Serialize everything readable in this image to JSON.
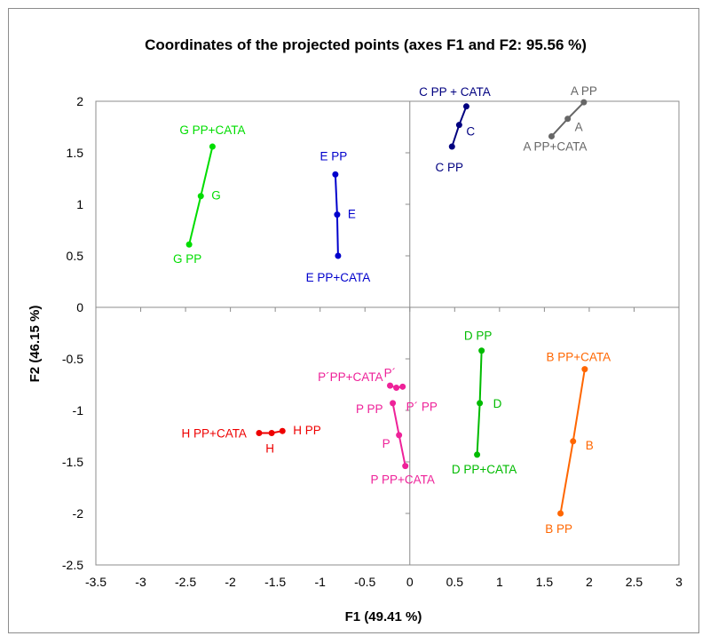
{
  "chart_data": {
    "type": "scatter",
    "title": "Coordinates of the projected points (axes F1 and F2: 95.56 %)",
    "xlabel": "F1 (49.41 %)",
    "ylabel": "F2 (46.15 %)",
    "xlim": [
      -3.5,
      3
    ],
    "ylim": [
      -2.5,
      2
    ],
    "xticks": [
      -3.5,
      -3,
      -2.5,
      -2,
      -1.5,
      -1,
      -0.5,
      0,
      0.5,
      1,
      1.5,
      2,
      2.5,
      3
    ],
    "yticks": [
      -2.5,
      -2,
      -1.5,
      -1,
      -0.5,
      0,
      0.5,
      1,
      1.5,
      2
    ],
    "xtick_labels": [
      "-3.5",
      "-3",
      "-2.5",
      "-2",
      "-1.5",
      "-1",
      "-0.5",
      "0",
      "0.5",
      "1",
      "1.5",
      "2",
      "2.5",
      "3"
    ],
    "ytick_labels": [
      "-2.5",
      "-2",
      "-1.5",
      "-1",
      "-0.5",
      "0",
      "0.5",
      "1",
      "1.5",
      "2"
    ],
    "grid": false,
    "legend": "none",
    "series": [
      {
        "color": "#00dd00",
        "points": [
          {
            "label": "G PP+CATA",
            "x": -2.2,
            "y": 1.56
          },
          {
            "label": "G",
            "x": -2.33,
            "y": 1.08
          },
          {
            "label": "G PP",
            "x": -2.46,
            "y": 0.61
          }
        ]
      },
      {
        "color": "#0000cc",
        "points": [
          {
            "label": "E PP",
            "x": -0.83,
            "y": 1.29
          },
          {
            "label": "E",
            "x": -0.81,
            "y": 0.9
          },
          {
            "label": "E PP+CATA",
            "x": -0.8,
            "y": 0.5
          }
        ]
      },
      {
        "color": "#000080",
        "points": [
          {
            "label": "C PP + CATA",
            "x": 0.63,
            "y": 1.95
          },
          {
            "label": "C",
            "x": 0.55,
            "y": 1.77
          },
          {
            "label": "C PP",
            "x": 0.47,
            "y": 1.56
          }
        ]
      },
      {
        "color": "#666666",
        "points": [
          {
            "label": "A PP",
            "x": 1.94,
            "y": 1.99
          },
          {
            "label": "A",
            "x": 1.76,
            "y": 1.83
          },
          {
            "label": "A PP+CATA",
            "x": 1.58,
            "y": 1.66
          }
        ]
      },
      {
        "color": "#00bb00",
        "points": [
          {
            "label": "D PP",
            "x": 0.8,
            "y": -0.42
          },
          {
            "label": "D",
            "x": 0.78,
            "y": -0.93
          },
          {
            "label": "D PP+CATA",
            "x": 0.75,
            "y": -1.43
          }
        ]
      },
      {
        "color": "#ff6600",
        "points": [
          {
            "label": "B PP+CATA",
            "x": 1.95,
            "y": -0.6
          },
          {
            "label": "B",
            "x": 1.82,
            "y": -1.3
          },
          {
            "label": "B PP",
            "x": 1.68,
            "y": -2.0
          }
        ]
      },
      {
        "color": "#ee0000",
        "points": [
          {
            "label": "H PP+CATA",
            "x": -1.68,
            "y": -1.22
          },
          {
            "label": "H",
            "x": -1.54,
            "y": -1.22
          },
          {
            "label": "H PP",
            "x": -1.42,
            "y": -1.2
          }
        ]
      },
      {
        "color": "#ee2299",
        "points": [
          {
            "label": "P´PP+CATA",
            "x": -0.22,
            "y": -0.76
          },
          {
            "label": "P´",
            "x": -0.15,
            "y": -0.78
          },
          {
            "label": "P´ PP",
            "x": -0.08,
            "y": -0.77
          }
        ]
      },
      {
        "color": "#ee2299",
        "points": [
          {
            "label": "P PP",
            "x": -0.19,
            "y": -0.93
          },
          {
            "label": "P",
            "x": -0.12,
            "y": -1.24
          },
          {
            "label": "P PP+CATA",
            "x": -0.05,
            "y": -1.54
          }
        ]
      }
    ]
  }
}
